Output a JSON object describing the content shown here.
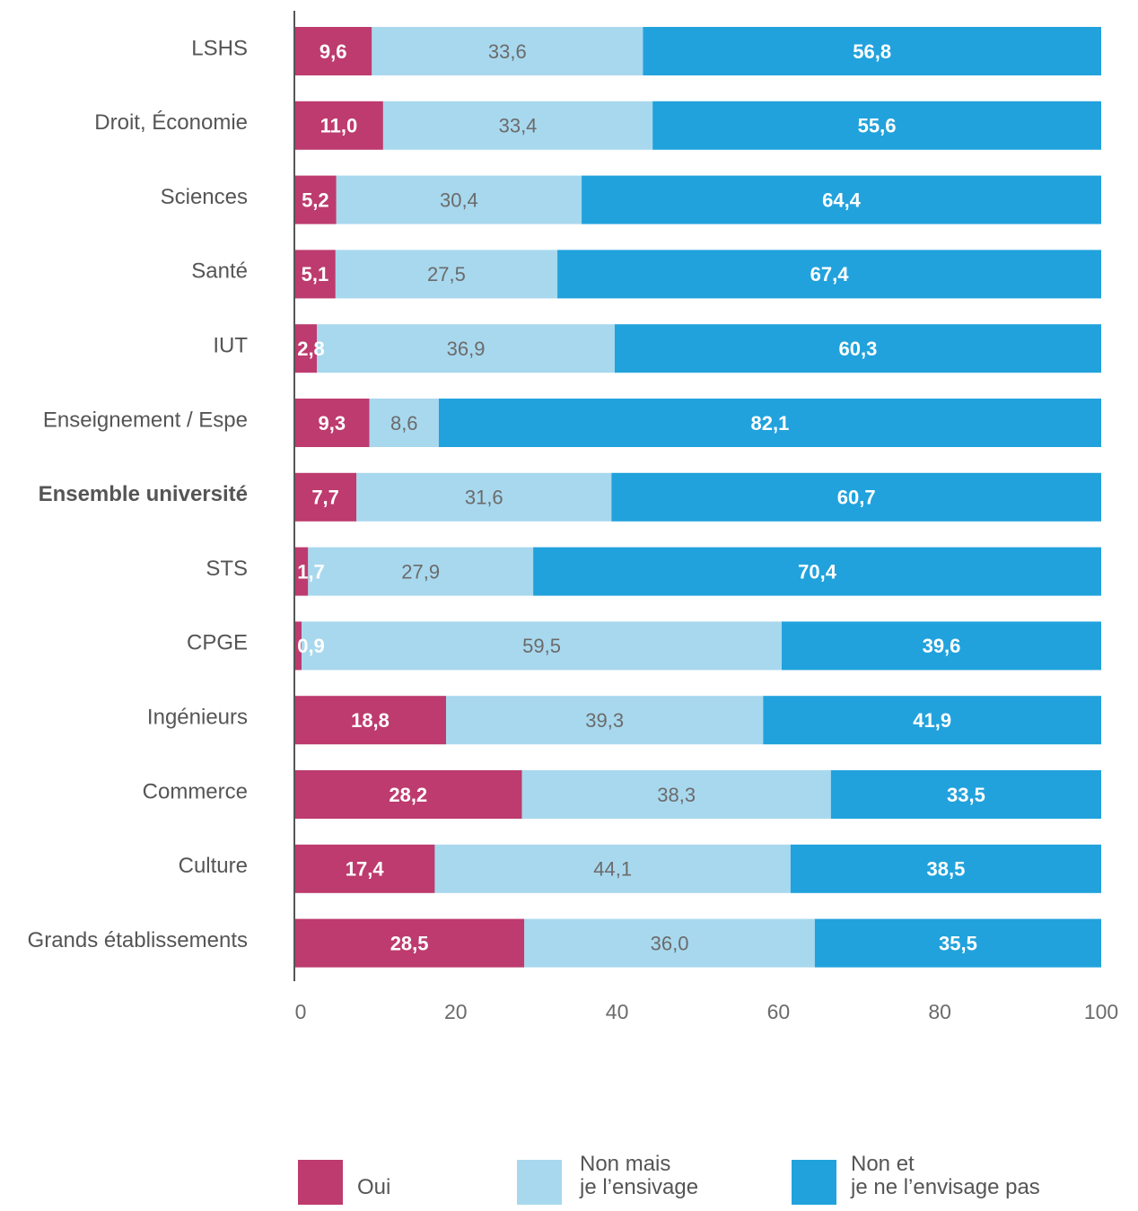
{
  "chart_data": {
    "type": "bar",
    "orientation": "horizontal",
    "stacked": true,
    "categories": [
      "LSHS",
      "Droit, Économie",
      "Sciences",
      "Santé",
      "IUT",
      "Enseignement / Espe",
      "Ensemble université",
      "STS",
      "CPGE",
      "Ingénieurs",
      "Commerce",
      "Culture",
      "Grands établissements"
    ],
    "highlighted_category": "Ensemble université",
    "series": [
      {
        "name": "Oui",
        "color": "#bd3b6e",
        "values": [
          9.6,
          11.0,
          5.2,
          5.1,
          2.8,
          9.3,
          7.7,
          1.7,
          0.9,
          18.8,
          28.2,
          17.4,
          28.5
        ],
        "labels": [
          "9,6",
          "11,0",
          "5,2",
          "5,1",
          "2,8",
          "9,3",
          "7,7",
          "1,7",
          "0,9",
          "18,8",
          "28,2",
          "17,4",
          "28,5"
        ]
      },
      {
        "name": "Non mais je l’ensivage",
        "legend_lines": [
          "Non mais",
          "je l’ensivage"
        ],
        "color": "#a8d8ee",
        "values": [
          33.6,
          33.4,
          30.4,
          27.5,
          36.9,
          8.6,
          31.6,
          27.9,
          59.5,
          39.3,
          38.3,
          44.1,
          36.0
        ],
        "labels": [
          "33,6",
          "33,4",
          "30,4",
          "27,5",
          "36,9",
          "8,6",
          "31,6",
          "27,9",
          "59,5",
          "39,3",
          "38,3",
          "44,1",
          "36,0"
        ]
      },
      {
        "name": "Non et je ne l’envisage pas",
        "legend_lines": [
          "Non et",
          "je ne l’envisage pas"
        ],
        "color": "#21a2dc",
        "values": [
          56.8,
          55.6,
          64.4,
          67.4,
          60.3,
          82.1,
          60.7,
          70.4,
          39.6,
          41.9,
          33.5,
          38.5,
          35.5
        ],
        "labels": [
          "56,8",
          "55,6",
          "64,4",
          "67,4",
          "60,3",
          "82,1",
          "60,7",
          "70,4",
          "39,6",
          "41,9",
          "33,5",
          "38,5",
          "35,5"
        ]
      }
    ],
    "xlim": [
      0,
      100
    ],
    "xticks": [
      0,
      20,
      40,
      60,
      80,
      100
    ],
    "legend_position": "bottom",
    "grid": false
  }
}
